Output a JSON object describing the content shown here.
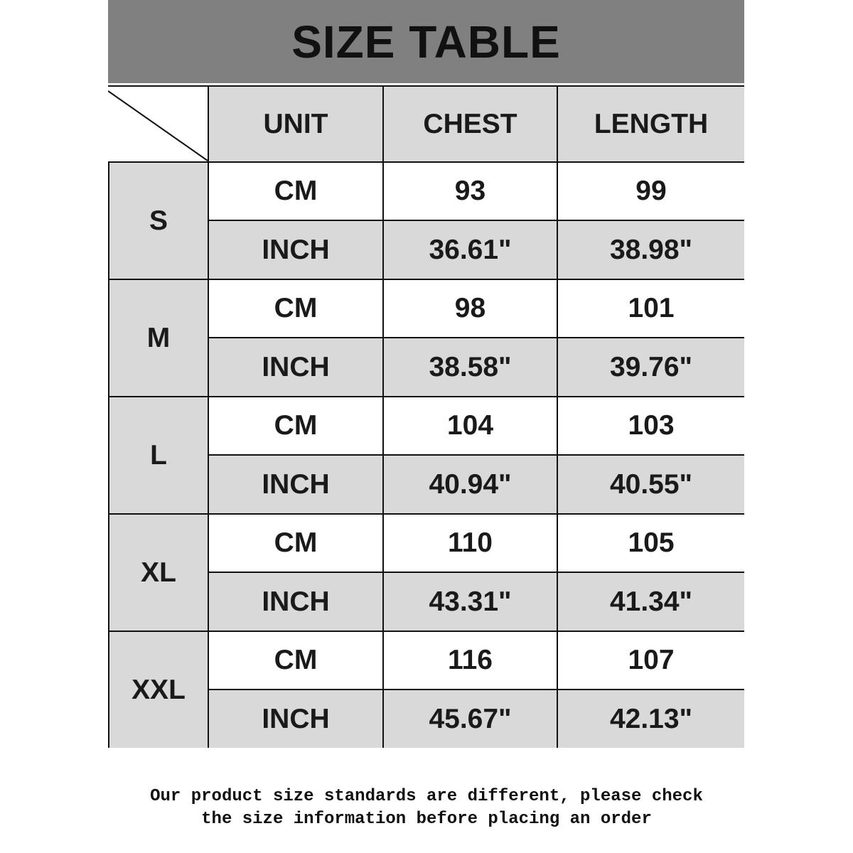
{
  "title": "SIZE TABLE",
  "headers": [
    "UNIT",
    "CHEST",
    "LENGTH"
  ],
  "sizes": [
    {
      "size": "S",
      "rows": [
        [
          "CM",
          "93",
          "99"
        ],
        [
          "INCH",
          "36.61\"",
          "38.98\""
        ]
      ]
    },
    {
      "size": "M",
      "rows": [
        [
          "CM",
          "98",
          "101"
        ],
        [
          "INCH",
          "38.58\"",
          "39.76\""
        ]
      ]
    },
    {
      "size": "L",
      "rows": [
        [
          "CM",
          "104",
          "103"
        ],
        [
          "INCH",
          "40.94\"",
          "40.55\""
        ]
      ]
    },
    {
      "size": "XL",
      "rows": [
        [
          "CM",
          "110",
          "105"
        ],
        [
          "INCH",
          "43.31\"",
          "41.34\""
        ]
      ]
    },
    {
      "size": "XXL",
      "rows": [
        [
          "CM",
          "116",
          "107"
        ],
        [
          "INCH",
          "45.67\"",
          "42.13\""
        ]
      ]
    }
  ],
  "footer": {
    "line1": "Our product size standards are different, please check",
    "line2": "the size information before placing an order"
  },
  "colors": {
    "title_band": "#808080",
    "cell_gray": "#d9d9d9",
    "cell_white": "#ffffff"
  }
}
